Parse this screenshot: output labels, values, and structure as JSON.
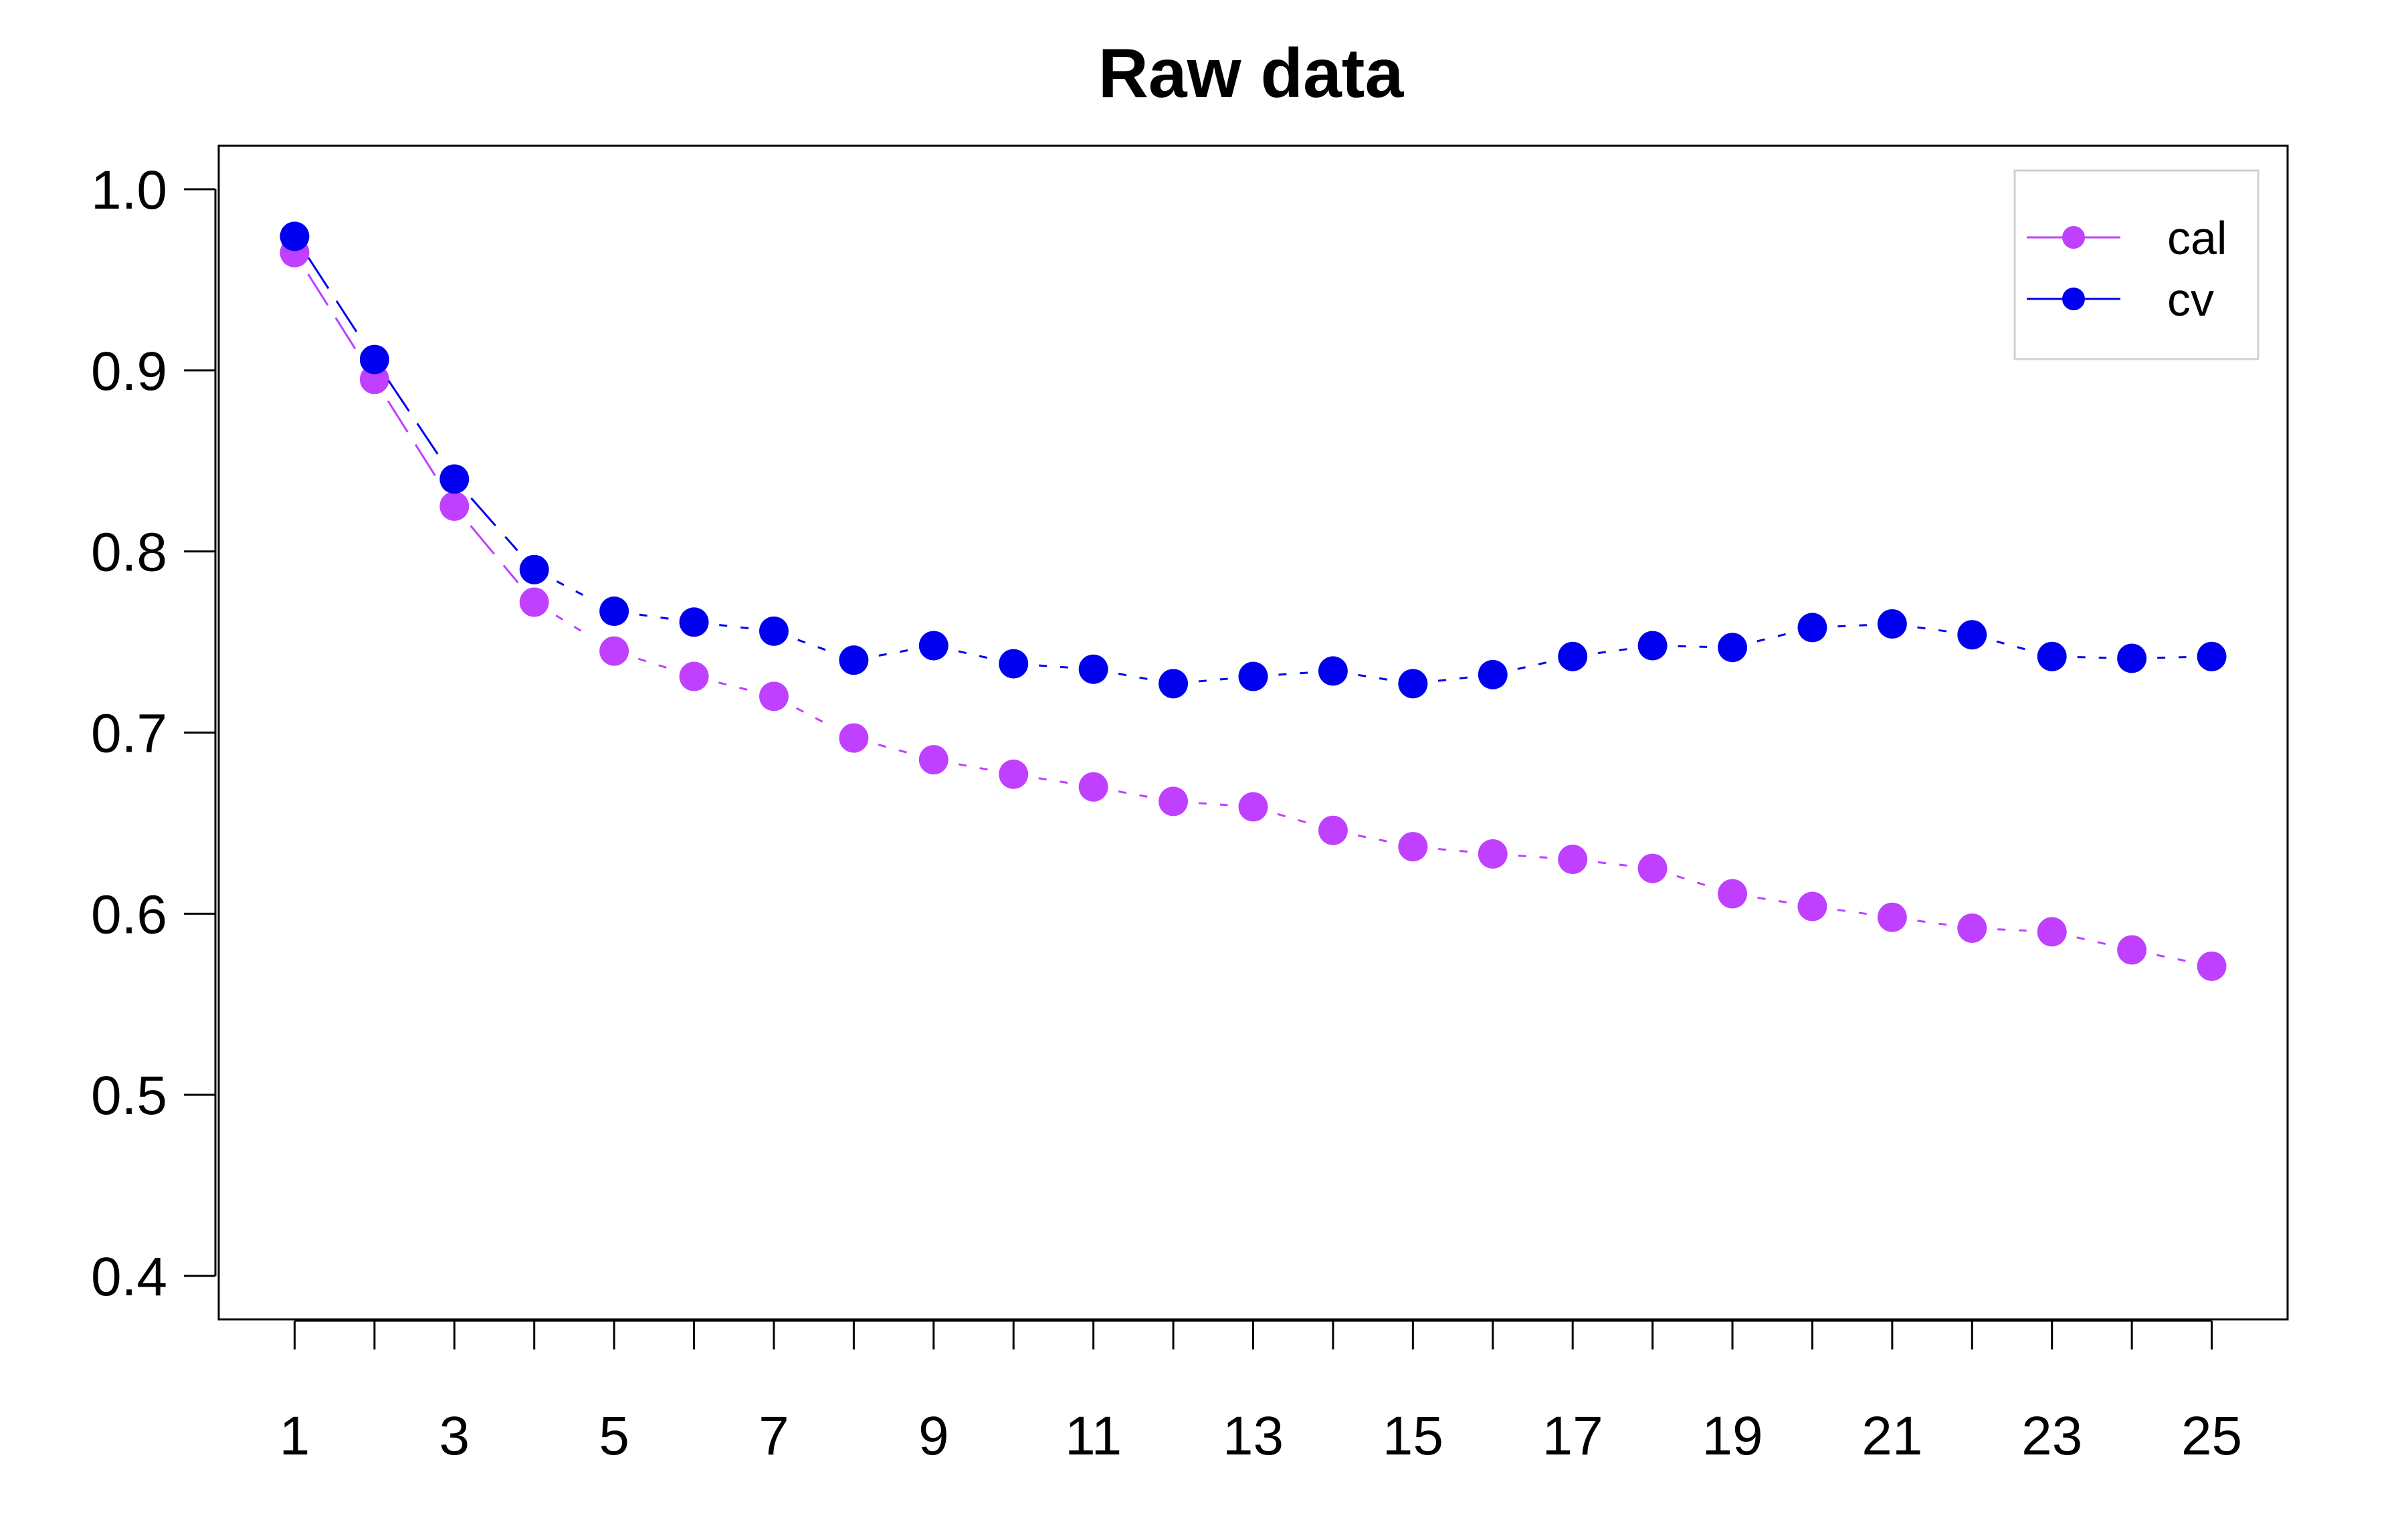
{
  "chart_data": {
    "type": "line",
    "title": "Raw data",
    "xlabel": "",
    "ylabel": "",
    "x": [
      1,
      2,
      3,
      4,
      5,
      6,
      7,
      8,
      9,
      10,
      11,
      12,
      13,
      14,
      15,
      16,
      17,
      18,
      19,
      20,
      21,
      22,
      23,
      24,
      25
    ],
    "x_tick_labels": [
      "1",
      "3",
      "5",
      "7",
      "9",
      "11",
      "13",
      "15",
      "17",
      "19",
      "21",
      "23",
      "25"
    ],
    "y_tick_labels": [
      "0.4",
      "0.5",
      "0.6",
      "0.7",
      "0.8",
      "0.9",
      "1.0"
    ],
    "xlim": [
      0.05,
      25.95
    ],
    "ylim": [
      0.376,
      1.024
    ],
    "grid": false,
    "legend_position": "top-right",
    "series": [
      {
        "name": "cal",
        "color": "#BF40FF",
        "values": [
          0.965,
          0.895,
          0.825,
          0.772,
          0.745,
          0.731,
          0.72,
          0.697,
          0.685,
          0.677,
          0.67,
          0.662,
          0.659,
          0.646,
          0.637,
          0.633,
          0.63,
          0.625,
          0.611,
          0.604,
          0.598,
          0.592,
          0.59,
          0.58,
          0.571
        ]
      },
      {
        "name": "cv",
        "color": "#0000EE",
        "values": [
          0.974,
          0.906,
          0.84,
          0.79,
          0.767,
          0.761,
          0.756,
          0.74,
          0.748,
          0.738,
          0.735,
          0.727,
          0.731,
          0.734,
          0.727,
          0.732,
          0.742,
          0.748,
          0.747,
          0.758,
          0.76,
          0.754,
          0.742,
          0.741,
          0.742
        ]
      }
    ]
  }
}
